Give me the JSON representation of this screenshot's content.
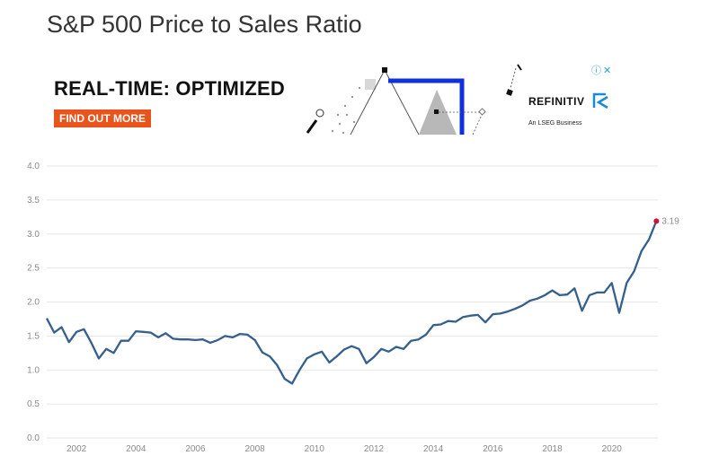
{
  "page": {
    "title": "S&P 500 Price to Sales Ratio"
  },
  "ad": {
    "headline": "REAL-TIME: OPTIMIZED",
    "cta_label": "FIND OUT MORE",
    "brand": "REFINITIV",
    "brand_sub": "An LSEG Business",
    "info_icon": "info-icon",
    "close_icon": "close-icon",
    "accent_color": "#e8541c",
    "art_blue": "#1030e0"
  },
  "chart_data": {
    "type": "line",
    "title": "S&P 500 Price to Sales Ratio",
    "xlabel": "",
    "ylabel": "",
    "xlim": [
      2001.0,
      2021.55
    ],
    "ylim": [
      0,
      4.0
    ],
    "yticks": [
      0.0,
      0.5,
      1.0,
      1.5,
      2.0,
      2.5,
      3.0,
      3.5,
      4.0
    ],
    "ytick_labels": [
      "0.0",
      "0.5",
      "1.0",
      "1.5",
      "2.0",
      "2.5",
      "3.0",
      "3.5",
      "4.0"
    ],
    "xticks": [
      2002,
      2004,
      2006,
      2008,
      2010,
      2012,
      2014,
      2016,
      2018,
      2020
    ],
    "xtick_labels": [
      "2002",
      "2004",
      "2006",
      "2008",
      "2010",
      "2012",
      "2014",
      "2016",
      "2018",
      "2020"
    ],
    "grid": true,
    "line_color": "#355f8d",
    "end_marker_color": "#d0103a",
    "end_label": "3.19",
    "series": [
      {
        "x": [
          2001.0,
          2001.25,
          2001.5,
          2001.75,
          2002.0,
          2002.25,
          2002.5,
          2002.75,
          2003.0,
          2003.25,
          2003.5,
          2003.75,
          2004.0,
          2004.25,
          2004.5,
          2004.75,
          2005.0,
          2005.25,
          2005.5,
          2005.75,
          2006.0,
          2006.25,
          2006.5,
          2006.75,
          2007.0,
          2007.25,
          2007.5,
          2007.75,
          2008.0,
          2008.25,
          2008.5,
          2008.75,
          2009.0,
          2009.25,
          2009.5,
          2009.75,
          2010.0,
          2010.25,
          2010.5,
          2010.75,
          2011.0,
          2011.25,
          2011.5,
          2011.75,
          2012.0,
          2012.25,
          2012.5,
          2012.75,
          2013.0,
          2013.25,
          2013.5,
          2013.75,
          2014.0,
          2014.25,
          2014.5,
          2014.75,
          2015.0,
          2015.25,
          2015.5,
          2015.75,
          2016.0,
          2016.25,
          2016.5,
          2016.75,
          2017.0,
          2017.25,
          2017.5,
          2017.75,
          2018.0,
          2018.25,
          2018.5,
          2018.75,
          2019.0,
          2019.25,
          2019.5,
          2019.75,
          2020.0,
          2020.25,
          2020.5,
          2020.75,
          2021.0,
          2021.25,
          2021.5
        ],
        "values": [
          1.76,
          1.55,
          1.63,
          1.41,
          1.56,
          1.6,
          1.4,
          1.17,
          1.31,
          1.25,
          1.43,
          1.43,
          1.57,
          1.56,
          1.55,
          1.48,
          1.54,
          1.46,
          1.45,
          1.45,
          1.44,
          1.45,
          1.4,
          1.44,
          1.5,
          1.48,
          1.53,
          1.52,
          1.44,
          1.26,
          1.2,
          1.07,
          0.87,
          0.8,
          1.0,
          1.17,
          1.23,
          1.27,
          1.11,
          1.2,
          1.3,
          1.35,
          1.31,
          1.1,
          1.19,
          1.31,
          1.27,
          1.34,
          1.31,
          1.43,
          1.45,
          1.52,
          1.66,
          1.67,
          1.72,
          1.71,
          1.78,
          1.8,
          1.81,
          1.7,
          1.82,
          1.83,
          1.86,
          1.9,
          1.95,
          2.02,
          2.05,
          2.1,
          2.17,
          2.1,
          2.11,
          2.2,
          1.87,
          2.1,
          2.14,
          2.14,
          2.28,
          1.84,
          2.28,
          2.45,
          2.75,
          2.92,
          3.19
        ]
      }
    ]
  }
}
